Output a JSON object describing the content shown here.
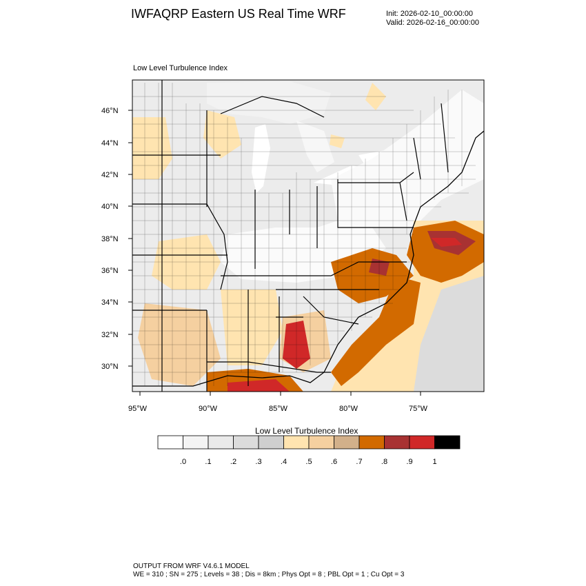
{
  "header": {
    "title": "IWFAQRP Eastern US Real Time WRF",
    "init": "Init: 2026-02-10_00:00:00",
    "valid": "Valid: 2026-02-16_00:00:00"
  },
  "map": {
    "panel_title": "Low Level Turbulence Index",
    "lat_labels": [
      "46°N",
      "44°N",
      "42°N",
      "40°N",
      "38°N",
      "36°N",
      "34°N",
      "32°N",
      "30°N"
    ],
    "lon_labels": [
      "95°W",
      "90°W",
      "85°W",
      "80°W",
      "75°W"
    ]
  },
  "colorbar": {
    "title": "Low Level Turbulence Index",
    "labels": [
      ".0",
      ".1",
      ".2",
      ".3",
      ".4",
      ".5",
      ".6",
      ".7",
      ".8",
      ".9",
      "1"
    ],
    "colors": [
      "#ffffff",
      "#f4f4f4",
      "#eaeaea",
      "#dcdcdc",
      "#cfcfcf",
      "#ffe4b0",
      "#f5d0a0",
      "#d2b08a",
      "#d26a00",
      "#a83232",
      "#d02828",
      "#000000"
    ]
  },
  "footer": {
    "line1": "OUTPUT FROM WRF V4.6.1 MODEL",
    "line2": "WE = 310 ; SN = 275 ; Levels = 38 ; Dis = 8km ; Phys Opt = 8 ; PBL Opt = 1 ; Cu Opt = 3"
  }
}
